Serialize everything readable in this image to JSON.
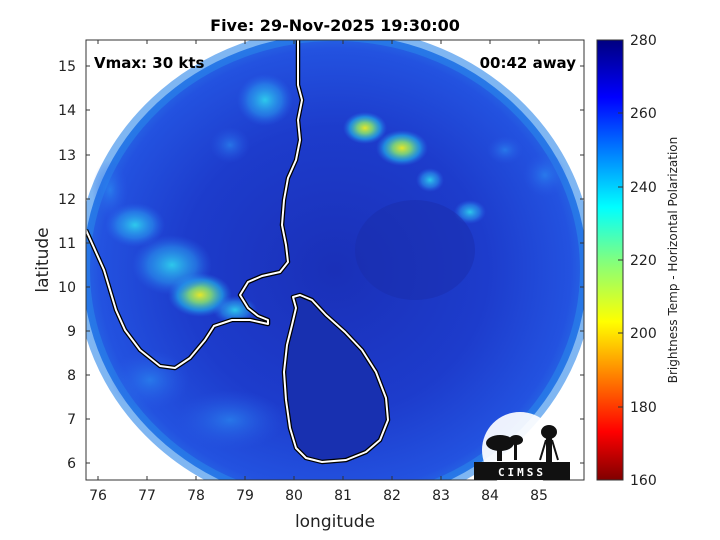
{
  "title": "Five: 29-Nov-2025 19:30:00",
  "annotations": {
    "vmax": "Vmax: 30 kts",
    "time_away": "00:42 away"
  },
  "axes": {
    "xlabel": "longitude",
    "ylabel": "latitude",
    "xticks": [
      "76",
      "77",
      "78",
      "79",
      "80",
      "81",
      "82",
      "83",
      "84",
      "85"
    ],
    "yticks": [
      "15",
      "14",
      "13",
      "12",
      "11",
      "10",
      "9",
      "8",
      "7",
      "6"
    ]
  },
  "colorbar": {
    "label": "Brightness Temp - Horizontal Polarization",
    "ticks": [
      "280",
      "260",
      "240",
      "220",
      "200",
      "180",
      "160"
    ],
    "range": [
      160,
      280
    ]
  },
  "logo": {
    "text": "CIMSS"
  },
  "colors": {
    "background_field": "#1f3fd6",
    "disk_edge": "#2a8cf0",
    "cold_cloud": "#e4e830"
  }
}
